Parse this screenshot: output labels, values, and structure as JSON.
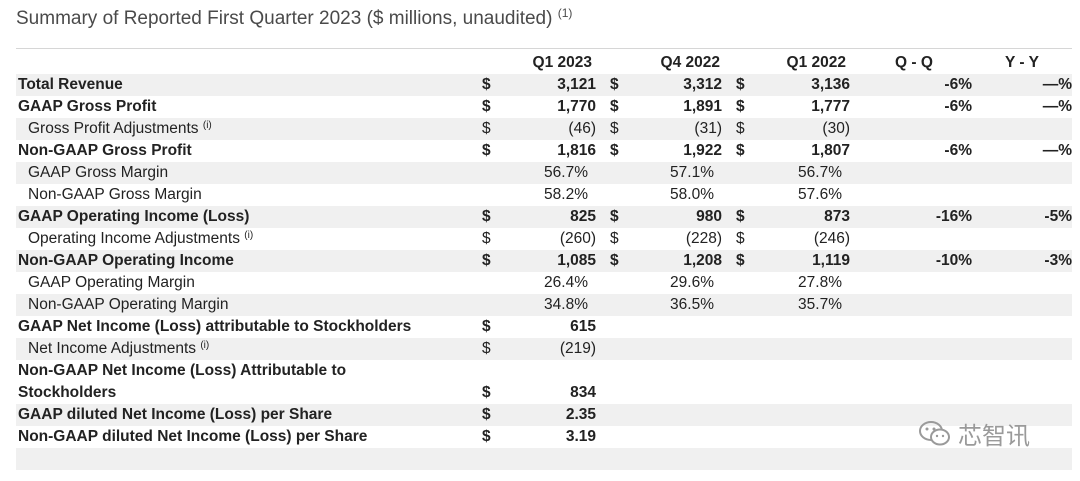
{
  "title": "Summary of Reported First Quarter 2023 ($ millions, unaudited)",
  "title_note": "(1)",
  "headers": [
    "",
    "",
    "Q1 2023",
    "",
    "Q4 2022",
    "",
    "Q1 2022",
    "Q - Q",
    "Y - Y"
  ],
  "rows": [
    {
      "label": "Total Revenue",
      "note": "",
      "s1": "$",
      "v1": "3,121",
      "s2": "$",
      "v2": "3,312",
      "s3": "$",
      "v3": "3,136",
      "qq": "-6%",
      "yy": "—%"
    },
    {
      "label": "GAAP Gross Profit",
      "note": "",
      "s1": "$",
      "v1": "1,770",
      "s2": "$",
      "v2": "1,891",
      "s3": "$",
      "v3": "1,777",
      "qq": "-6%",
      "yy": "—%"
    },
    {
      "label": "Gross Profit Adjustments",
      "note": "(i)",
      "s1": "$",
      "v1": "(46)",
      "s2": "$",
      "v2": "(31)",
      "s3": "$",
      "v3": "(30)",
      "qq": "",
      "yy": ""
    },
    {
      "label": "Non-GAAP Gross Profit",
      "note": "",
      "s1": "$",
      "v1": "1,816",
      "s2": "$",
      "v2": "1,922",
      "s3": "$",
      "v3": "1,807",
      "qq": "-6%",
      "yy": "—%"
    },
    {
      "label": "GAAP Gross Margin",
      "note": "",
      "s1": "",
      "v1": "56.7%",
      "s2": "",
      "v2": "57.1%",
      "s3": "",
      "v3": "56.7%",
      "qq": "",
      "yy": ""
    },
    {
      "label": "Non-GAAP Gross Margin",
      "note": "",
      "s1": "",
      "v1": "58.2%",
      "s2": "",
      "v2": "58.0%",
      "s3": "",
      "v3": "57.6%",
      "qq": "",
      "yy": ""
    },
    {
      "label": "GAAP Operating Income (Loss)",
      "note": "",
      "s1": "$",
      "v1": "825",
      "s2": "$",
      "v2": "980",
      "s3": "$",
      "v3": "873",
      "qq": "-16%",
      "yy": "-5%"
    },
    {
      "label": "Operating Income Adjustments",
      "note": "(i)",
      "s1": "$",
      "v1": "(260)",
      "s2": "$",
      "v2": "(228)",
      "s3": "$",
      "v3": "(246)",
      "qq": "",
      "yy": ""
    },
    {
      "label": "Non-GAAP Operating Income",
      "note": "",
      "s1": "$",
      "v1": "1,085",
      "s2": "$",
      "v2": "1,208",
      "s3": "$",
      "v3": "1,119",
      "qq": "-10%",
      "yy": "-3%"
    },
    {
      "label": "GAAP Operating Margin",
      "note": "",
      "s1": "",
      "v1": "26.4%",
      "s2": "",
      "v2": "29.6%",
      "s3": "",
      "v3": "27.8%",
      "qq": "",
      "yy": ""
    },
    {
      "label": "Non-GAAP Operating Margin",
      "note": "",
      "s1": "",
      "v1": "34.8%",
      "s2": "",
      "v2": "36.5%",
      "s3": "",
      "v3": "35.7%",
      "qq": "",
      "yy": ""
    },
    {
      "label": "GAAP Net Income (Loss) attributable to Stockholders",
      "note": "",
      "s1": "$",
      "v1": "615",
      "s2": "",
      "v2": "",
      "s3": "",
      "v3": "",
      "qq": "",
      "yy": ""
    },
    {
      "label": "Net Income Adjustments",
      "note": "(i)",
      "s1": "$",
      "v1": "(219)",
      "s2": "",
      "v2": "",
      "s3": "",
      "v3": "",
      "qq": "",
      "yy": ""
    },
    {
      "label": "Non-GAAP Net Income (Loss) Attributable to",
      "note": "",
      "s1": "",
      "v1": "",
      "s2": "",
      "v2": "",
      "s3": "",
      "v3": "",
      "qq": "",
      "yy": ""
    },
    {
      "label": "Stockholders",
      "note": "",
      "s1": "$",
      "v1": "834",
      "s2": "",
      "v2": "",
      "s3": "",
      "v3": "",
      "qq": "",
      "yy": ""
    },
    {
      "label": "GAAP diluted Net Income (Loss) per Share",
      "note": "",
      "s1": "$",
      "v1": "2.35",
      "s2": "",
      "v2": "",
      "s3": "",
      "v3": "",
      "qq": "",
      "yy": ""
    },
    {
      "label": "Non-GAAP diluted Net Income (Loss) per Share",
      "note": "",
      "s1": "$",
      "v1": "3.19",
      "s2": "",
      "v2": "",
      "s3": "",
      "v3": "",
      "qq": "",
      "yy": ""
    }
  ],
  "watermark": "芯智讯",
  "watermark_icon": "wechat-icon"
}
